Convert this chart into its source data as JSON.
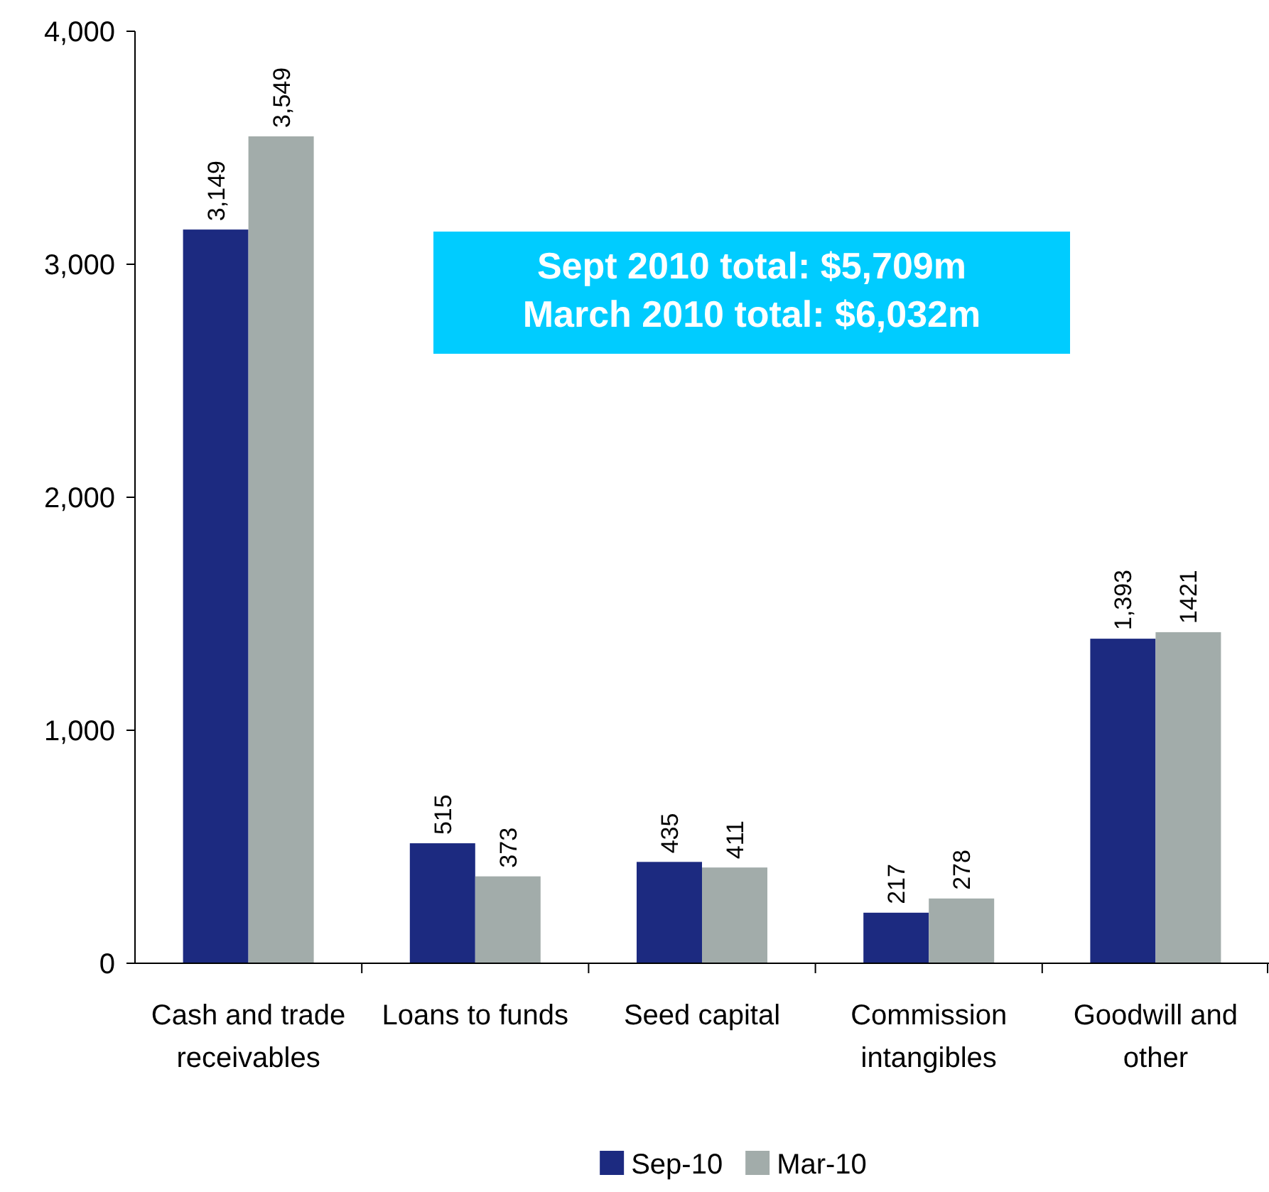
{
  "chart_data": {
    "type": "bar",
    "categories": [
      "Cash and trade receivables",
      "Loans to funds",
      "Seed capital",
      "Commission intangibles",
      "Goodwill and other"
    ],
    "series": [
      {
        "name": "Sep-10",
        "color": "#1c2a80",
        "values": [
          3149,
          515,
          435,
          217,
          1393
        ],
        "value_labels": [
          "3,149",
          "515",
          "435",
          "217",
          "1,393"
        ]
      },
      {
        "name": "Mar-10",
        "color": "#a2acaa",
        "values": [
          3549,
          373,
          411,
          278,
          1421
        ],
        "value_labels": [
          "3,549",
          "373",
          "411",
          "278",
          "1421"
        ]
      }
    ],
    "ylim": [
      0,
      4000
    ],
    "yticks": [
      0,
      {
        "value": 1000,
        "label": "1,000"
      },
      {
        "value": 2000,
        "label": "2,000"
      },
      {
        "value": 3000,
        "label": "3,000"
      },
      {
        "value": 4000,
        "label": "4,000"
      }
    ],
    "annotations": [
      "Sept 2010 total: $5,709m",
      "March 2010 total: $6,032m"
    ],
    "grid": false,
    "legend": "bottom"
  }
}
